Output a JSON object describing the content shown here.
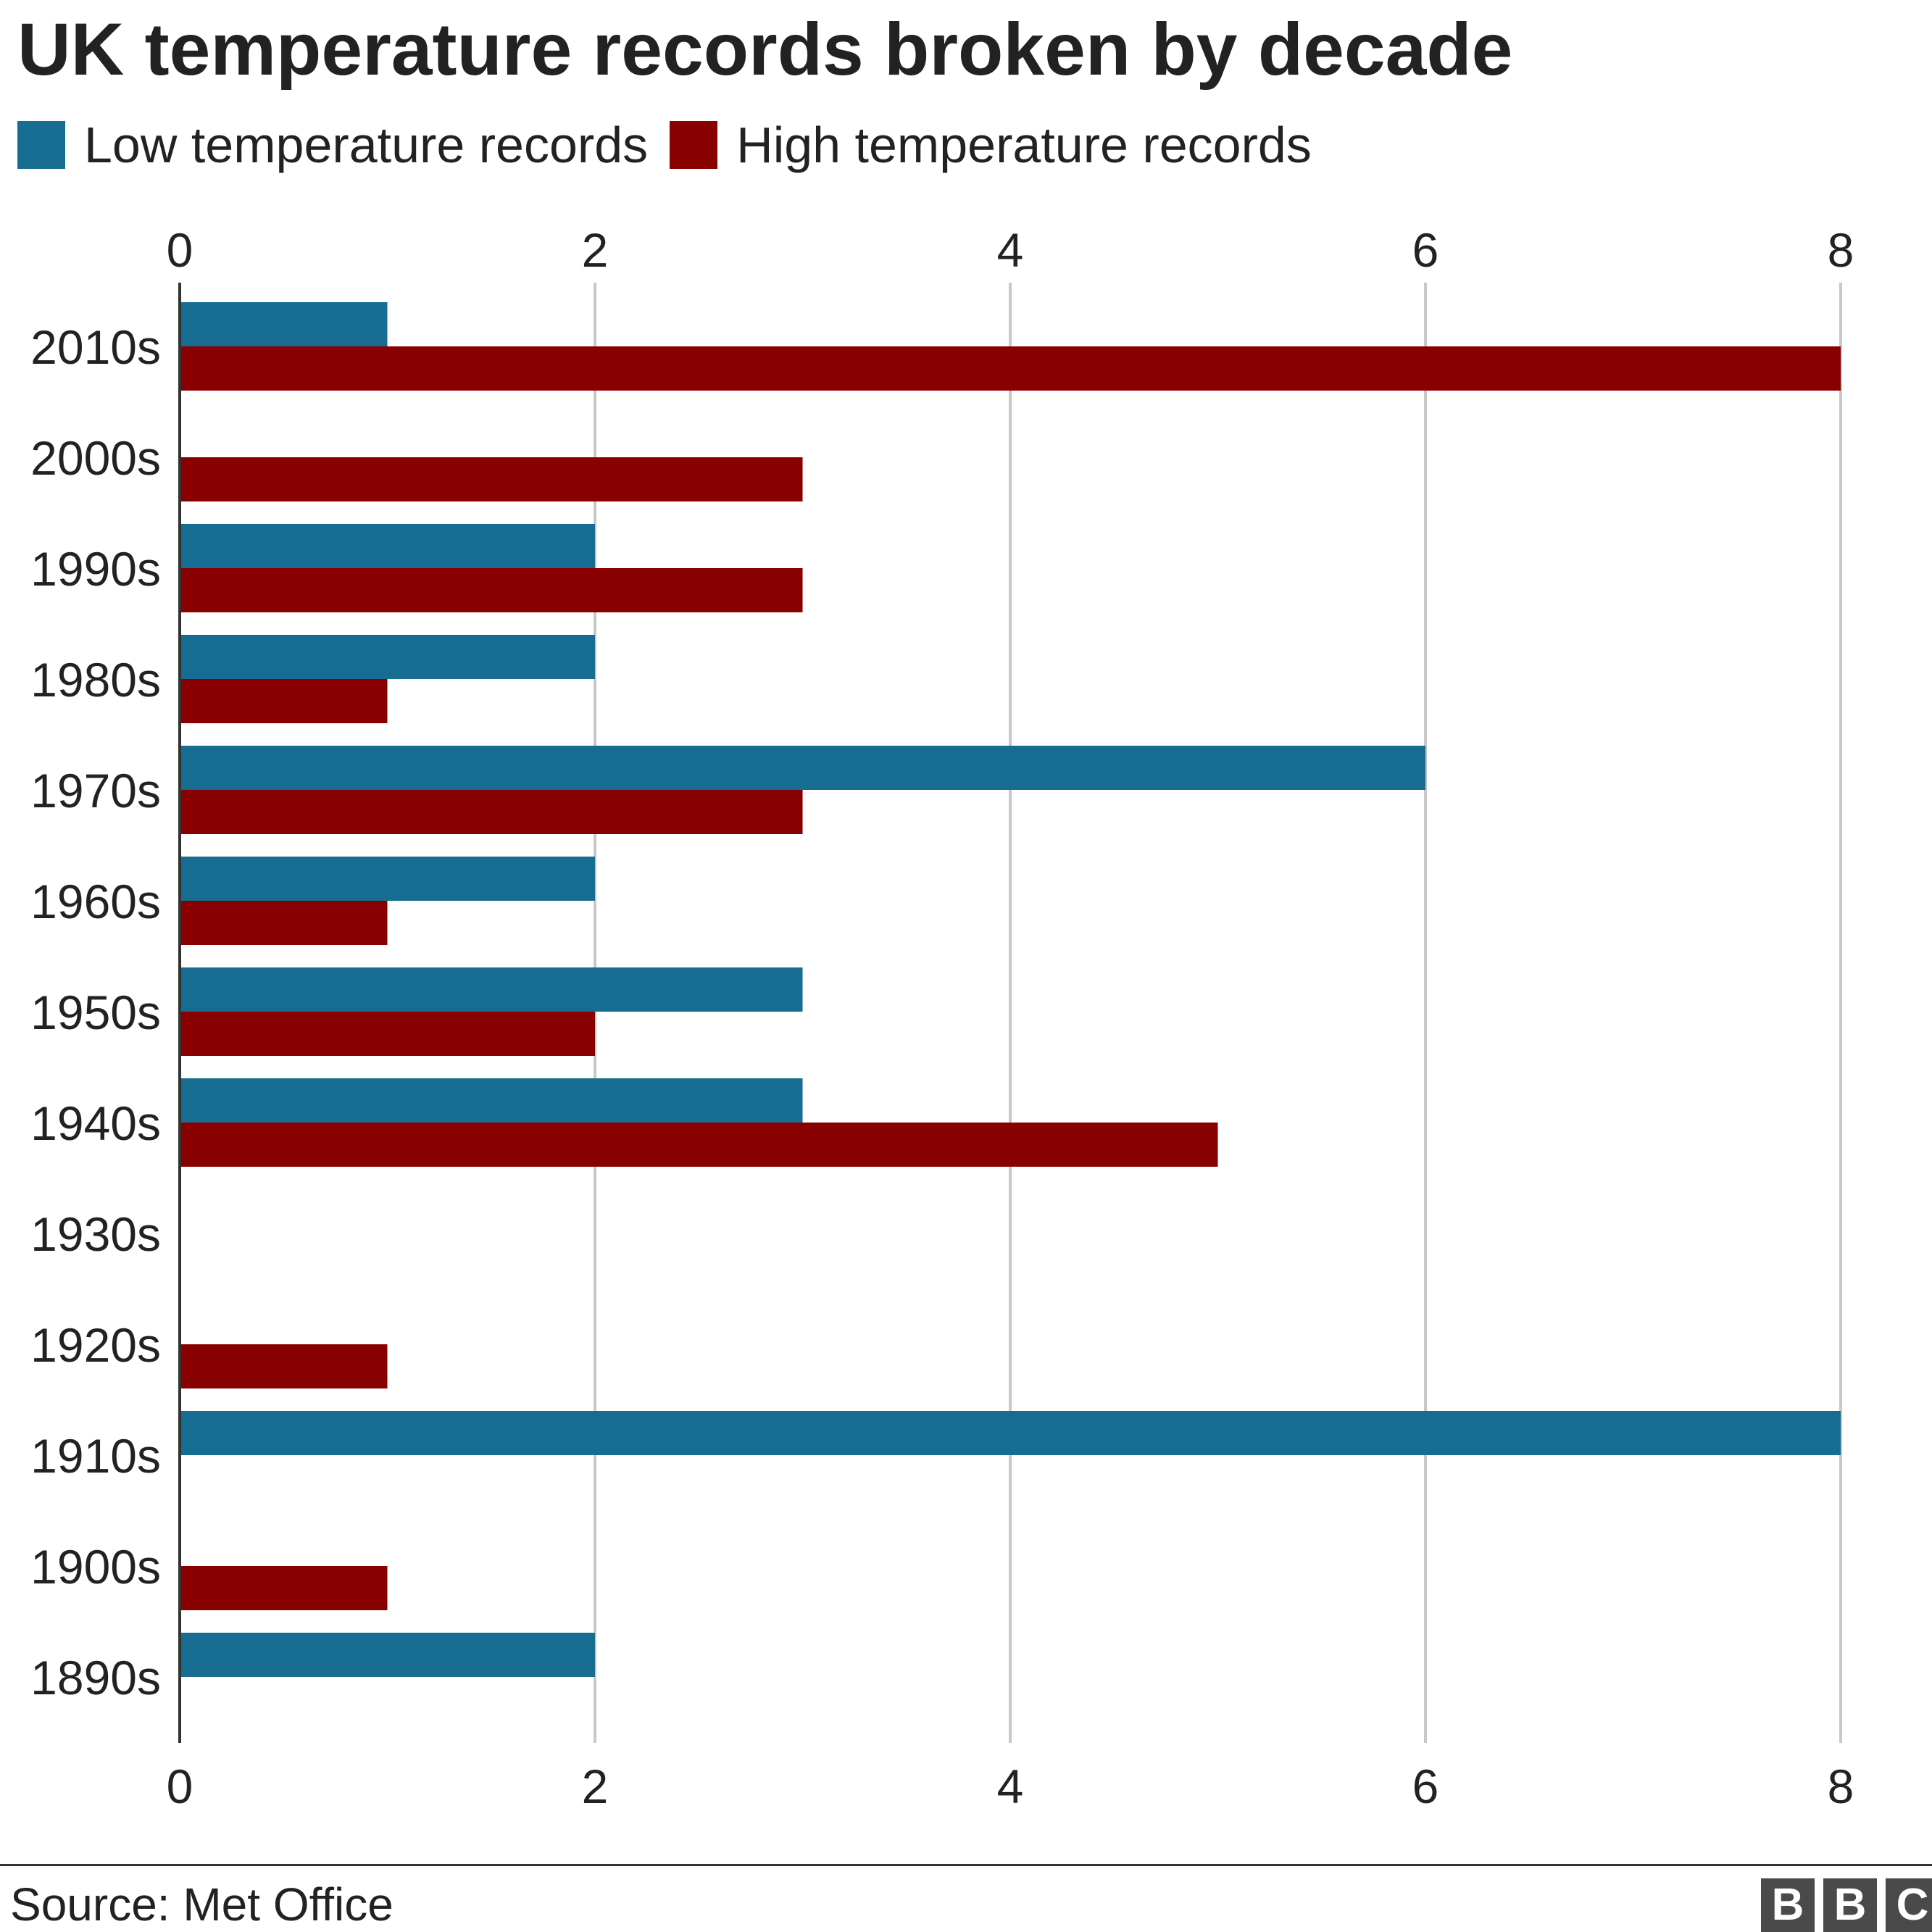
{
  "chart_data": {
    "type": "bar",
    "orientation": "horizontal",
    "title": "UK temperature records broken by decade",
    "categories": [
      "2010s",
      "2000s",
      "1990s",
      "1980s",
      "1970s",
      "1960s",
      "1950s",
      "1940s",
      "1930s",
      "1920s",
      "1910s",
      "1900s",
      "1890s"
    ],
    "series": [
      {
        "name": "Low temperature records",
        "color": "#176d91",
        "values": [
          1,
          0,
          2,
          2,
          6,
          2,
          3,
          3,
          0,
          0,
          8,
          0,
          2
        ]
      },
      {
        "name": "High temperature records",
        "color": "#880000",
        "values": [
          8,
          3,
          3,
          1,
          3,
          1,
          2,
          5,
          0,
          1,
          0,
          1,
          0
        ]
      }
    ],
    "x_ticks": [
      "0",
      "2",
      "4",
      "6",
      "8"
    ],
    "xlim": [
      0,
      8
    ],
    "grid": true,
    "legend_position": "top-left",
    "source": "Source: Met Office"
  },
  "logo": {
    "letters": [
      "B",
      "B",
      "C"
    ]
  }
}
